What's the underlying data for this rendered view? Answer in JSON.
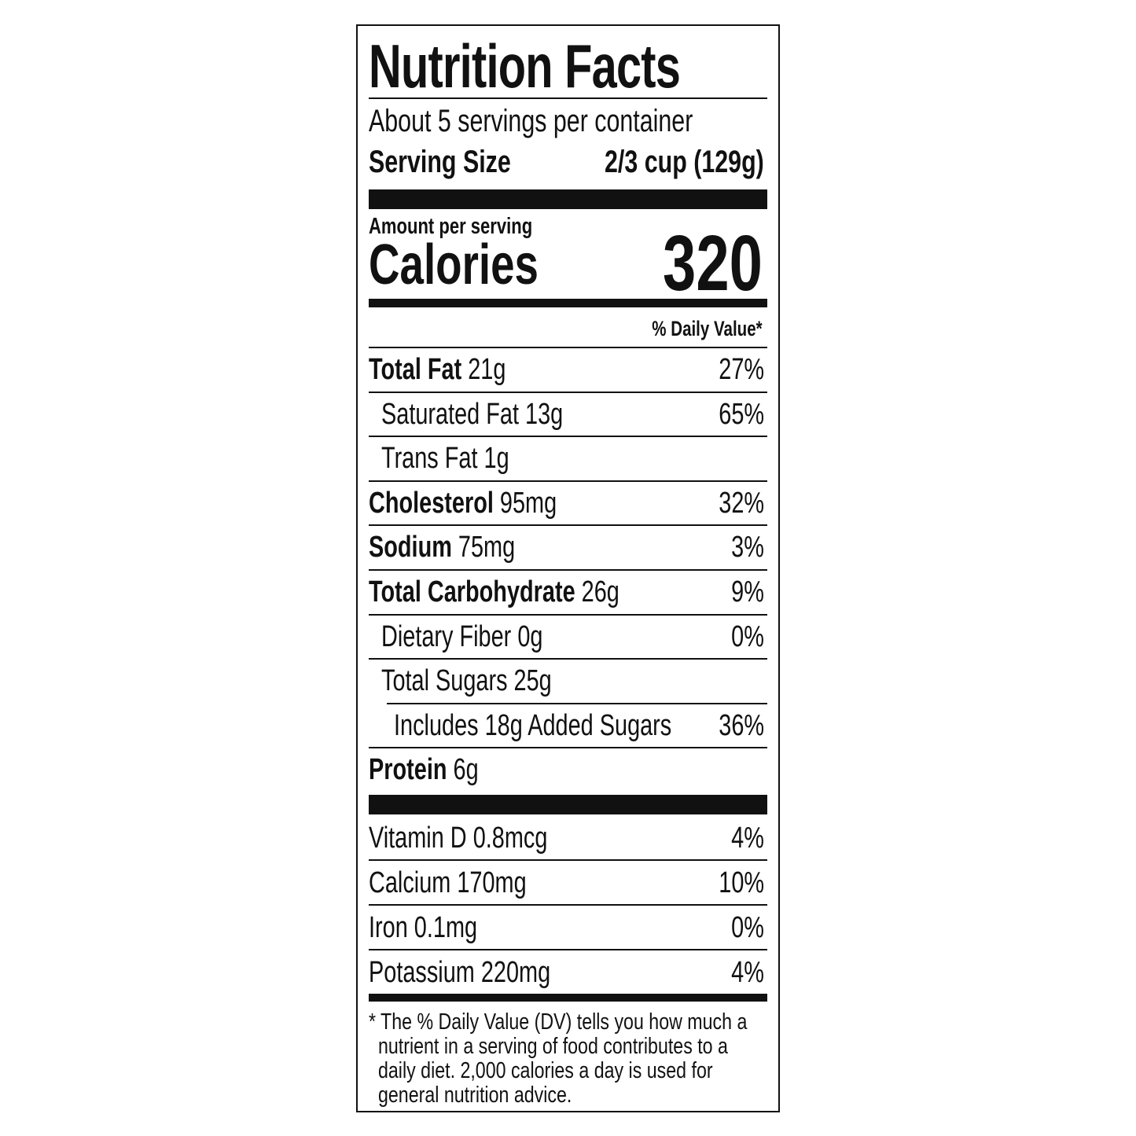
{
  "title": "Nutrition Facts",
  "servings_per_container": "About 5 servings per container",
  "serving_size": {
    "label": "Serving Size",
    "value": "2/3 cup (129g)"
  },
  "amount_per_serving": "Amount per serving",
  "calories": {
    "label": "Calories",
    "value": "320"
  },
  "daily_value_header": "% Daily Value*",
  "nutrients": [
    {
      "name": "Total Fat",
      "amount": "21g",
      "dv": "27%",
      "bold": true,
      "indent": 0
    },
    {
      "name": "Saturated Fat",
      "amount": "13g",
      "dv": "65%",
      "bold": false,
      "indent": 1
    },
    {
      "name": "Trans Fat",
      "amount": "1g",
      "dv": "",
      "bold": false,
      "indent": 1
    },
    {
      "name": "Cholesterol",
      "amount": "95mg",
      "dv": "32%",
      "bold": true,
      "indent": 0
    },
    {
      "name": "Sodium",
      "amount": "75mg",
      "dv": "3%",
      "bold": true,
      "indent": 0
    },
    {
      "name": "Total Carbohydrate",
      "amount": "26g",
      "dv": "9%",
      "bold": true,
      "indent": 0
    },
    {
      "name": "Dietary Fiber",
      "amount": "0g",
      "dv": "0%",
      "bold": false,
      "indent": 1
    },
    {
      "name": "Total Sugars",
      "amount": "25g",
      "dv": "",
      "bold": false,
      "indent": 1
    },
    {
      "name": "Includes 18g Added Sugars",
      "amount": "",
      "dv": "36%",
      "bold": false,
      "indent": 2
    },
    {
      "name": "Protein",
      "amount": "6g",
      "dv": "",
      "bold": true,
      "indent": 0
    }
  ],
  "vitamins": [
    {
      "name": "Vitamin D",
      "amount": "0.8mcg",
      "dv": "4%"
    },
    {
      "name": "Calcium",
      "amount": "170mg",
      "dv": "10%"
    },
    {
      "name": "Iron",
      "amount": "0.1mg",
      "dv": "0%"
    },
    {
      "name": "Potassium",
      "amount": "220mg",
      "dv": "4%"
    }
  ],
  "footnote": [
    "* The % Daily Value (DV) tells you how much a",
    "nutrient in a serving of food contributes to a",
    "daily diet. 2,000 calories a day is used for",
    "general nutrition advice."
  ]
}
